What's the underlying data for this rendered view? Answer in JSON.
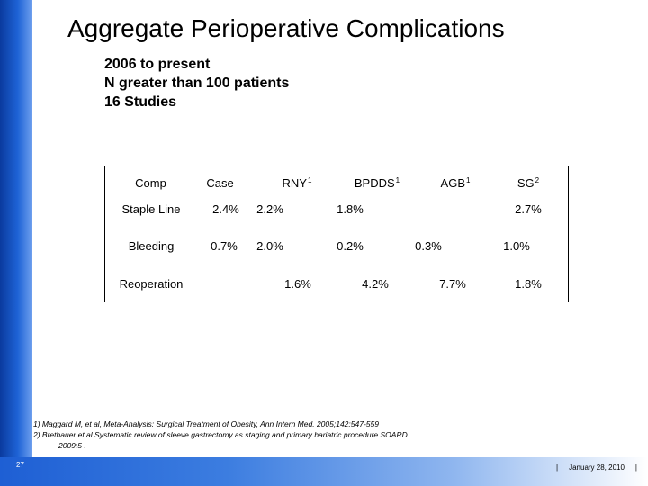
{
  "title": "Aggregate Perioperative Complications",
  "subtitle_lines": [
    "2006 to present",
    "N greater than 100 patients",
    "16 Studies"
  ],
  "table": {
    "headers": [
      {
        "label": "Comp",
        "sup": ""
      },
      {
        "label": "Case",
        "sup": ""
      },
      {
        "label": "RNY",
        "sup": "1"
      },
      {
        "label": "BPDDS",
        "sup": "1"
      },
      {
        "label": "AGB",
        "sup": "1"
      },
      {
        "label": "SG",
        "sup": "2"
      }
    ],
    "rows": [
      [
        "Staple Line",
        "2.4%",
        "2.2%",
        "1.8%",
        "",
        "2.7%"
      ],
      [
        "Bleeding",
        "0.7%",
        "2.0%",
        "0.2%",
        "0.3%",
        "1.0%"
      ],
      [
        "Reoperation",
        "",
        "1.6%",
        "4.2%",
        "7.7%",
        "1.8%"
      ]
    ]
  },
  "footnotes": [
    "1) Maggard M, et al, Meta-Analysis: Surgical Treatment of Obesity, Ann Intern Med. 2005;142:547-559",
    "2)  Brethauer et al  Systematic review of sleeve gastrectomy as staging and primary bariatric procedure SOARD",
    "2009;5 ."
  ],
  "footer": {
    "slide_number": "27",
    "date": "January 28, 2010",
    "separator": "|"
  },
  "colors": {
    "sidebar": "#1e63d6",
    "footer_bar": "#3c7de0"
  }
}
